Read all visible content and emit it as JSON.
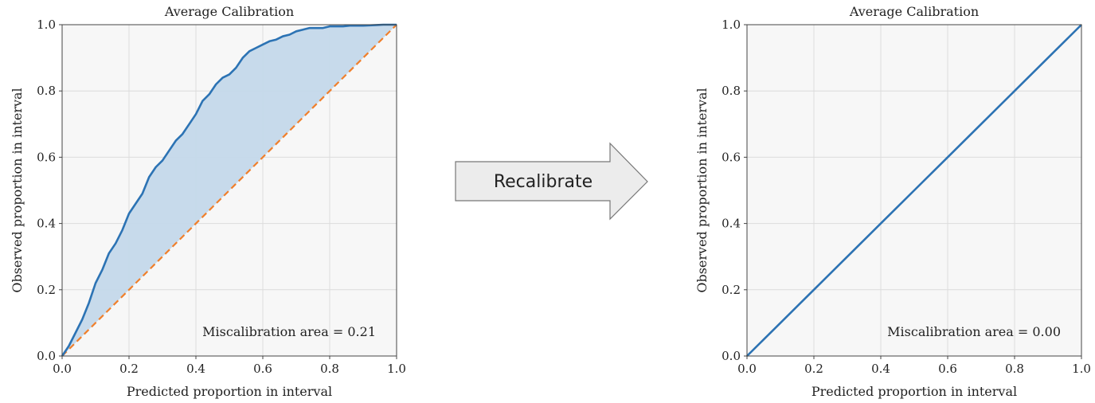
{
  "chart_data": [
    {
      "type": "line",
      "title": "Average Calibration",
      "xlabel": "Predicted proportion in interval",
      "ylabel": "Observed proportion in interval",
      "xlim": [
        0,
        1
      ],
      "ylim": [
        0,
        1
      ],
      "xticks": [
        "0.0",
        "0.2",
        "0.4",
        "0.6",
        "0.8",
        "1.0"
      ],
      "yticks": [
        "0.0",
        "0.2",
        "0.4",
        "0.6",
        "0.8",
        "1.0"
      ],
      "grid": true,
      "annotation": "Miscalibration area = 0.21",
      "series": [
        {
          "role": "observed",
          "color": "#2c73b4",
          "x": [
            0.0,
            0.02,
            0.04,
            0.06,
            0.08,
            0.1,
            0.12,
            0.14,
            0.16,
            0.18,
            0.2,
            0.22,
            0.24,
            0.26,
            0.28,
            0.3,
            0.32,
            0.34,
            0.36,
            0.38,
            0.4,
            0.42,
            0.44,
            0.46,
            0.48,
            0.5,
            0.52,
            0.54,
            0.56,
            0.58,
            0.6,
            0.62,
            0.64,
            0.66,
            0.68,
            0.7,
            0.72,
            0.74,
            0.76,
            0.78,
            0.8,
            0.82,
            0.84,
            0.86,
            0.88,
            0.9,
            0.92,
            0.94,
            0.96,
            0.98,
            1.0
          ],
          "y": [
            0.0,
            0.03,
            0.07,
            0.11,
            0.16,
            0.22,
            0.26,
            0.31,
            0.34,
            0.38,
            0.43,
            0.46,
            0.49,
            0.54,
            0.57,
            0.59,
            0.62,
            0.65,
            0.67,
            0.7,
            0.73,
            0.77,
            0.79,
            0.82,
            0.84,
            0.85,
            0.87,
            0.9,
            0.92,
            0.93,
            0.94,
            0.95,
            0.955,
            0.965,
            0.97,
            0.98,
            0.985,
            0.99,
            0.99,
            0.99,
            0.995,
            0.995,
            0.995,
            0.997,
            0.997,
            0.997,
            0.998,
            0.999,
            1.0,
            1.0,
            1.0
          ]
        },
        {
          "role": "ideal",
          "color": "#f07f2b",
          "dashed": true,
          "x": [
            0,
            1
          ],
          "y": [
            0,
            1
          ]
        }
      ],
      "fill_between": true,
      "fill_color": "#c4d8ea"
    },
    {
      "type": "line",
      "title": "Average Calibration",
      "xlabel": "Predicted proportion in interval",
      "ylabel": "Observed proportion in interval",
      "xlim": [
        0,
        1
      ],
      "ylim": [
        0,
        1
      ],
      "xticks": [
        "0.0",
        "0.2",
        "0.4",
        "0.6",
        "0.8",
        "1.0"
      ],
      "yticks": [
        "0.0",
        "0.2",
        "0.4",
        "0.6",
        "0.8",
        "1.0"
      ],
      "grid": true,
      "annotation": "Miscalibration area = 0.00",
      "series": [
        {
          "role": "observed",
          "color": "#2c73b4",
          "x": [
            0.0,
            0.1,
            0.2,
            0.3,
            0.4,
            0.5,
            0.6,
            0.7,
            0.8,
            0.9,
            1.0
          ],
          "y": [
            0.0,
            0.1,
            0.2,
            0.3,
            0.4,
            0.5,
            0.6,
            0.7,
            0.8,
            0.9,
            1.0
          ]
        },
        {
          "role": "ideal",
          "color": "#f07f2b",
          "dashed": true,
          "x": [
            0,
            1
          ],
          "y": [
            0,
            1
          ]
        }
      ],
      "fill_between": true,
      "fill_color": "#c4d8ea"
    }
  ],
  "arrow": {
    "label": "Recalibrate",
    "fill": "#ececec",
    "stroke": "#777777"
  }
}
